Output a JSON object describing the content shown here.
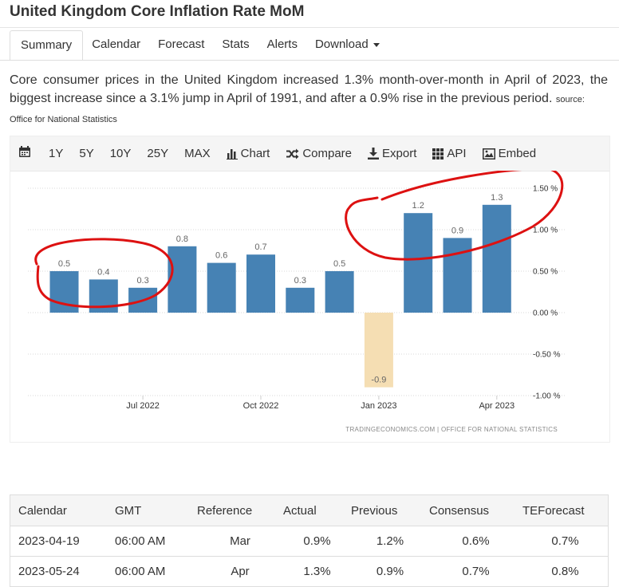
{
  "page": {
    "title": "United Kingdom Core Inflation Rate MoM",
    "description": "Core consumer prices in the United Kingdom increased 1.3% month-over-month in April of 2023, the biggest increase since a 3.1% jump in April of 1991, and after a 0.9% rise in the previous period.",
    "source_label": "source:",
    "source_name": "Office for National Statistics"
  },
  "tabs": [
    {
      "label": "Summary",
      "active": true
    },
    {
      "label": "Calendar"
    },
    {
      "label": "Forecast"
    },
    {
      "label": "Stats"
    },
    {
      "label": "Alerts"
    },
    {
      "label": "Download"
    }
  ],
  "toolbar": {
    "ranges": [
      "1Y",
      "5Y",
      "10Y",
      "25Y",
      "MAX"
    ],
    "chart_label": "Chart",
    "compare_label": "Compare",
    "export_label": "Export",
    "api_label": "API",
    "embed_label": "Embed"
  },
  "chart_data": {
    "type": "bar",
    "categories": [
      "2022-05",
      "2022-06",
      "2022-07",
      "2022-08",
      "2022-09",
      "2022-10",
      "2022-11",
      "2022-12",
      "2023-01",
      "2023-02",
      "2023-03",
      "2023-04"
    ],
    "values": [
      0.5,
      0.4,
      0.3,
      0.8,
      0.6,
      0.7,
      0.3,
      0.5,
      -0.9,
      1.2,
      0.9,
      1.3
    ],
    "data_labels": [
      "0.5",
      "0.4",
      "0.3",
      "0.8",
      "0.6",
      "0.7",
      "0.3",
      "0.5",
      "-0.9",
      "1.2",
      "0.9",
      "1.3"
    ],
    "x_ticks": [
      {
        "index": 2,
        "label": "Jul 2022"
      },
      {
        "index": 5,
        "label": "Oct 2022"
      },
      {
        "index": 8,
        "label": "Jan 2023"
      },
      {
        "index": 11,
        "label": "Apr 2023"
      }
    ],
    "y_ticks": [
      {
        "value": 1.5,
        "label": "1.50 %"
      },
      {
        "value": 1.0,
        "label": "1.00 %"
      },
      {
        "value": 0.5,
        "label": "0.50 %"
      },
      {
        "value": 0.0,
        "label": "0.00 %"
      },
      {
        "value": -0.5,
        "label": "-0.50 %"
      },
      {
        "value": -1.0,
        "label": "-1.00 %"
      }
    ],
    "ylim": [
      -1.0,
      1.5
    ],
    "y_axis_side": "right",
    "grid": true,
    "colors": {
      "positive": "#4682b4",
      "negative": "#f5deb3",
      "highlight_circle": "#dd1111"
    },
    "annotations": [
      "hand-drawn red circle around May–Jul 2022 bars",
      "hand-drawn red circle around Feb–Apr 2023 bars"
    ],
    "credit": "TRADINGECONOMICS.COM | OFFICE FOR NATIONAL STATISTICS"
  },
  "calendar_table": {
    "headers": [
      "Calendar",
      "GMT",
      "Reference",
      "Actual",
      "Previous",
      "Consensus",
      "TEForecast"
    ],
    "rows": [
      [
        "2023-04-19",
        "06:00 AM",
        "Mar",
        "0.9%",
        "1.2%",
        "0.6%",
        "0.7%"
      ],
      [
        "2023-05-24",
        "06:00 AM",
        "Apr",
        "1.3%",
        "0.9%",
        "0.7%",
        "0.8%"
      ]
    ]
  }
}
